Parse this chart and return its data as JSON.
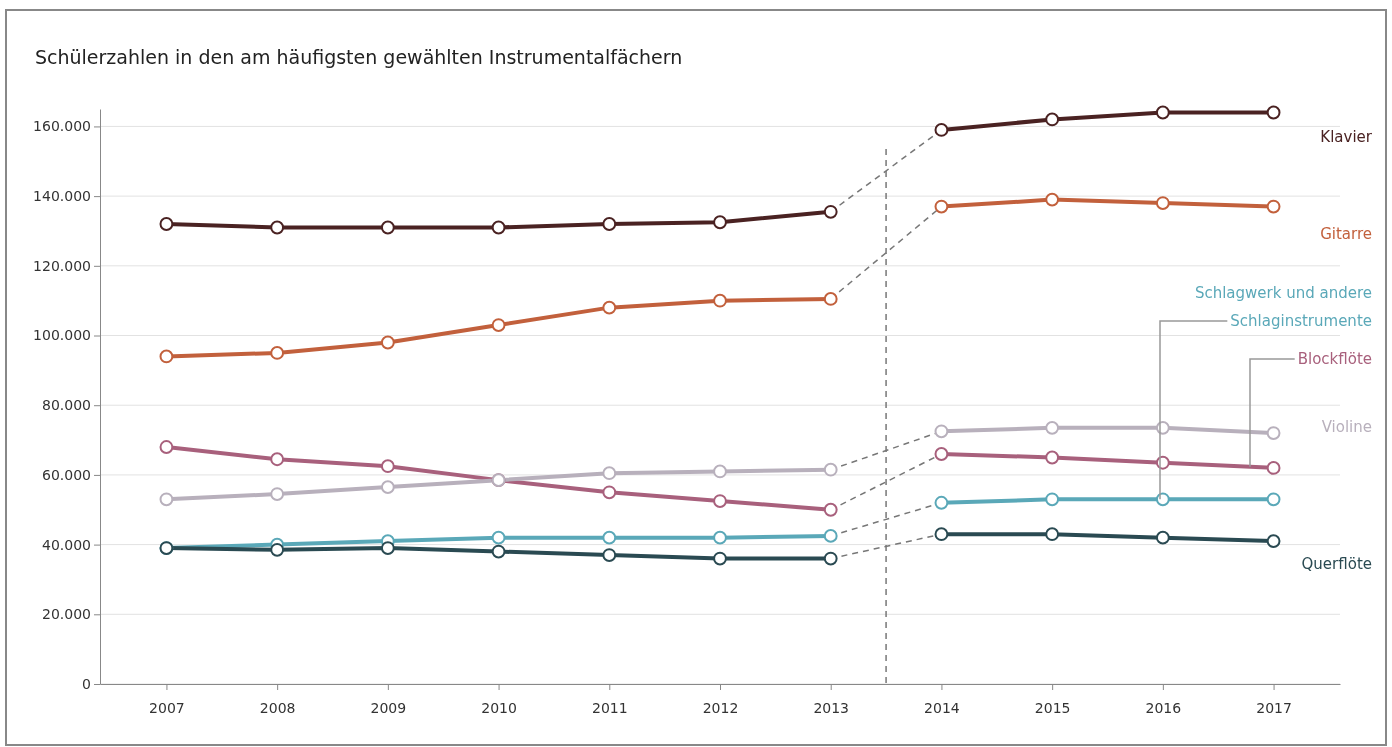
{
  "chart_data": {
    "type": "line",
    "title": "Schülerzahlen in den am häufigsten gewählten Instrumentalfächern",
    "x": [
      2007,
      2008,
      2009,
      2010,
      2011,
      2012,
      2013,
      2014,
      2015,
      2016,
      2017
    ],
    "xlim": [
      2006.4,
      2017.6
    ],
    "xticks": [
      2007,
      2008,
      2009,
      2010,
      2011,
      2012,
      2013,
      2014,
      2015,
      2016,
      2017
    ],
    "ylim": [
      0,
      165000
    ],
    "yticks": [
      {
        "value": 0,
        "label": "0"
      },
      {
        "value": 20000,
        "label": "20.000"
      },
      {
        "value": 40000,
        "label": "40.000"
      },
      {
        "value": 60000,
        "label": "60.000"
      },
      {
        "value": 80000,
        "label": "80.000"
      },
      {
        "value": 100000,
        "label": "100.000"
      },
      {
        "value": 120000,
        "label": "120.000"
      },
      {
        "value": 140000,
        "label": "140.000"
      },
      {
        "value": 160000,
        "label": "160.000"
      }
    ],
    "grid": "y",
    "marker": "circle",
    "ref_lines": [
      {
        "axis": "x",
        "value": 2013.5,
        "line_style": "dashed",
        "color": "#777777"
      }
    ],
    "series": [
      {
        "name": "Klavier",
        "color": "#4a2222",
        "values": [
          132000,
          131000,
          131000,
          131000,
          132000,
          132500,
          135500,
          159000,
          162000,
          164000,
          164000
        ]
      },
      {
        "name": "Gitarre",
        "color": "#c2603c",
        "values": [
          94000,
          95000,
          98000,
          103000,
          108000,
          110000,
          110500,
          137000,
          139000,
          138000,
          137000
        ]
      },
      {
        "name": "Schlagwerk und andere Schlaginstrumente",
        "color": "#5aa8b8",
        "values": [
          39000,
          40000,
          41000,
          42000,
          42000,
          42000,
          42500,
          52000,
          53000,
          53000,
          53000
        ]
      },
      {
        "name": "Blockflöte",
        "color": "#a8607c",
        "values": [
          68000,
          64500,
          62500,
          58500,
          55000,
          52500,
          50000,
          66000,
          65000,
          63500,
          62000
        ]
      },
      {
        "name": "Violine",
        "color": "#b8b0bc",
        "values": [
          53000,
          54500,
          56500,
          58500,
          60500,
          61000,
          61500,
          72500,
          73500,
          73500,
          72000
        ]
      },
      {
        "name": "Querflöte",
        "color": "#2a4a52",
        "values": [
          39000,
          38500,
          39000,
          38000,
          37000,
          36000,
          36000,
          43000,
          43000,
          42000,
          41000
        ]
      }
    ]
  }
}
